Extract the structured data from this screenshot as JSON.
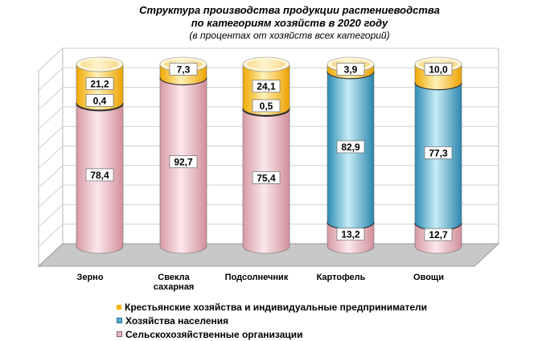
{
  "title_line1": "Структура производства продукции растениеводства",
  "title_line2": "по категориям хозяйств в 2020 году",
  "title_line3": "(в процентах от хозяйств всех категорий)",
  "colors": {
    "farms": "#f5b400",
    "households": "#58aed0",
    "organizations": "#e8b8c0"
  },
  "chart_data": {
    "type": "bar",
    "stacked": true,
    "style": "3d-cylinder",
    "categories": [
      "Зерно",
      "Свекла сахарная",
      "Подсолнечник",
      "Картофель",
      "Овощи"
    ],
    "category_labels": [
      [
        "Зерно"
      ],
      [
        "Свекла",
        "сахарная"
      ],
      [
        "Подсолнечник"
      ],
      [
        "Картофель"
      ],
      [
        "Овощи"
      ]
    ],
    "series": [
      {
        "key": "organizations",
        "name": "Сельскохозяйственные организации",
        "values": [
          78.4,
          92.7,
          75.4,
          13.2,
          12.7
        ]
      },
      {
        "key": "households",
        "name": "Хозяйства населения",
        "values": [
          0.4,
          0,
          0.5,
          82.9,
          77.3
        ]
      },
      {
        "key": "farms",
        "name": "Крестьянские хозяйства и индивидуальные предприниматели",
        "values": [
          21.2,
          7.3,
          24.1,
          3.9,
          10.0
        ]
      }
    ],
    "data_labels": [
      [
        "78,4",
        "0,4",
        "21,2"
      ],
      [
        "92,7",
        null,
        "7,3"
      ],
      [
        "75,4",
        "0,5",
        "24,1"
      ],
      [
        "13,2",
        "82,9",
        "3,9"
      ],
      [
        "12,7",
        "77,3",
        "10,0"
      ]
    ],
    "ylim": [
      0,
      100
    ],
    "grid": true,
    "legend_position": "bottom",
    "legend_order": [
      "farms",
      "households",
      "organizations"
    ]
  }
}
